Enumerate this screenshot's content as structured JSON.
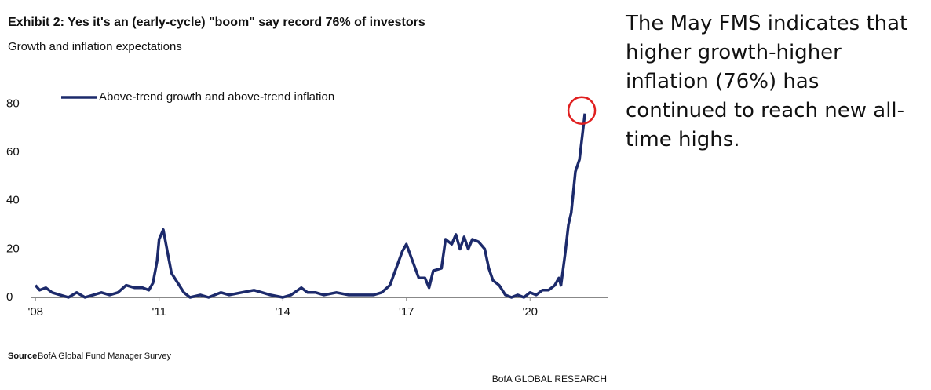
{
  "chart_data": {
    "type": "line",
    "title": "Exhibit 2: Yes it's an (early-cycle) \"boom\" say record 76% of investors",
    "subtitle": "Growth and inflation expectations",
    "annotation": "The May FMS indicates that higher growth-higher inflation (76%) has continued to reach new all-time highs.",
    "source_label": "Source:",
    "source": "BofA Global Fund Manager Survey",
    "footer": "BofA GLOBAL RESEARCH",
    "x": [
      2008.0,
      2008.1,
      2008.25,
      2008.4,
      2008.6,
      2008.8,
      2009.0,
      2009.2,
      2009.4,
      2009.6,
      2009.8,
      2010.0,
      2010.2,
      2010.4,
      2010.6,
      2010.75,
      2010.85,
      2010.95,
      2011.0,
      2011.1,
      2011.2,
      2011.3,
      2011.45,
      2011.6,
      2011.75,
      2012.0,
      2012.2,
      2012.5,
      2012.7,
      2013.0,
      2013.3,
      2013.5,
      2013.7,
      2014.0,
      2014.2,
      2014.45,
      2014.6,
      2014.8,
      2015.0,
      2015.3,
      2015.6,
      2015.9,
      2016.2,
      2016.4,
      2016.6,
      2016.75,
      2016.9,
      2017.0,
      2017.15,
      2017.3,
      2017.45,
      2017.55,
      2017.65,
      2017.85,
      2017.95,
      2018.1,
      2018.2,
      2018.3,
      2018.4,
      2018.5,
      2018.6,
      2018.75,
      2018.9,
      2019.0,
      2019.1,
      2019.25,
      2019.4,
      2019.55,
      2019.7,
      2019.85,
      2020.0,
      2020.15,
      2020.3,
      2020.45,
      2020.6,
      2020.7,
      2020.75,
      2020.85,
      2020.93,
      2021.0,
      2021.1,
      2021.2,
      2021.33
    ],
    "series": [
      {
        "name": "Above-trend growth and above-trend inflation",
        "color": "#1c2a6b",
        "values": [
          5,
          3,
          4,
          2,
          1,
          0,
          2,
          0,
          1,
          2,
          1,
          2,
          5,
          4,
          4,
          3,
          6,
          15,
          24,
          28,
          19,
          10,
          6,
          2,
          0,
          1,
          0,
          2,
          1,
          2,
          3,
          2,
          1,
          0,
          1,
          4,
          2,
          2,
          1,
          2,
          1,
          1,
          1,
          2,
          5,
          12,
          19,
          22,
          15,
          8,
          8,
          4,
          11,
          12,
          24,
          22,
          26,
          20,
          25,
          20,
          24,
          23,
          20,
          12,
          7,
          5,
          1,
          0,
          1,
          0,
          2,
          1,
          3,
          3,
          5,
          8,
          5,
          18,
          30,
          35,
          52,
          57,
          76
        ]
      }
    ],
    "xlim": [
      2007.9,
      2021.9
    ],
    "xticks": [
      {
        "value": 2008,
        "label": "'08"
      },
      {
        "value": 2011,
        "label": "'11"
      },
      {
        "value": 2014,
        "label": "'14"
      },
      {
        "value": 2017,
        "label": "'17"
      },
      {
        "value": 2020,
        "label": "'20"
      }
    ],
    "ylim": [
      0,
      85
    ],
    "yticks": [
      0,
      20,
      40,
      60,
      80
    ],
    "highlight_color": "#e02020",
    "legend": "top-left"
  }
}
